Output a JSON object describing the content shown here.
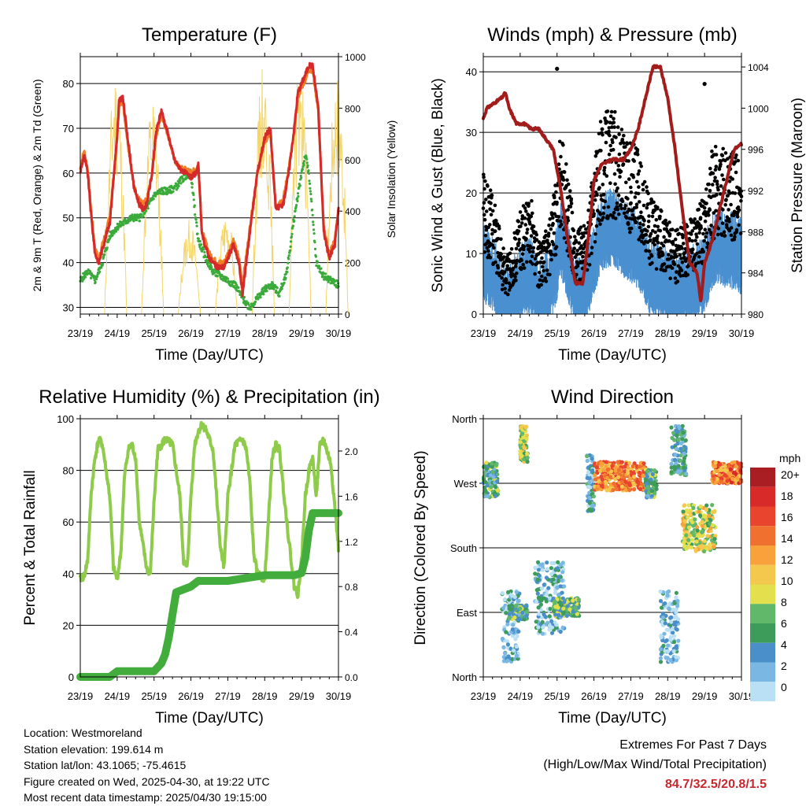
{
  "colors": {
    "temp_2m": "#d42a2a",
    "temp_9m": "#f07c28",
    "dewpoint": "#3aaa3a",
    "solar": "#f4d56a",
    "sonic_wind": "#4a90d0",
    "gust": "#000000",
    "pressure": "#a31c1c",
    "rh": "#8fcb4b",
    "precip": "#42ad3c",
    "extremes": "#c8282d"
  },
  "x_tick_labels": [
    "23/19",
    "24/19",
    "25/19",
    "26/19",
    "27/19",
    "28/19",
    "29/19",
    "30/19"
  ],
  "chart_data": [
    {
      "type": "line",
      "title": "Temperature (F)",
      "xlabel": "Time (Day/UTC)",
      "ylabel": "2m & 9m T (Red, Orange) & 2m Td (Green)",
      "y2label": "Solar Insolation (Yellow)",
      "x_unit": "days since 23/19",
      "xlim": [
        0,
        7
      ],
      "ylim": [
        28.5,
        86
      ],
      "y2lim": [
        0,
        1000
      ],
      "yticks": [
        30,
        40,
        50,
        60,
        70,
        80
      ],
      "y2ticks": [
        0,
        200,
        400,
        600,
        800,
        1000
      ],
      "grid": true,
      "series": [
        {
          "axis": "left",
          "x": [
            0,
            0.1,
            0.2,
            0.3,
            0.4,
            0.5,
            0.6,
            0.8,
            1.0,
            1.05,
            1.15,
            1.3,
            1.45,
            1.6,
            1.7,
            1.8,
            1.95,
            2.05,
            2.2,
            2.4,
            2.55,
            2.7,
            2.85,
            3.0,
            3.15,
            3.2,
            3.3,
            3.5,
            3.7,
            3.9,
            4.0,
            4.15,
            4.3,
            4.4,
            4.6,
            4.8,
            5.0,
            5.15,
            5.3,
            5.5,
            5.65,
            5.8,
            5.9,
            6.0,
            6.2,
            6.3,
            6.45,
            6.6,
            6.75,
            6.9,
            7.0
          ],
          "values": [
            60,
            64,
            60,
            50,
            42,
            40,
            43,
            49,
            68,
            76,
            77,
            67,
            57,
            53,
            52,
            53,
            60,
            69,
            74,
            68,
            63,
            61,
            60,
            59,
            60,
            62,
            46,
            41,
            39,
            39,
            41,
            44,
            40,
            33,
            47,
            60,
            68,
            70,
            52,
            53,
            60,
            70,
            78,
            80,
            84,
            84,
            75,
            47,
            41,
            44,
            52
          ]
        },
        {
          "axis": "left",
          "x": [
            0,
            0.1,
            0.2,
            0.3,
            0.4,
            0.5,
            0.6,
            0.8,
            1.0,
            1.05,
            1.15,
            1.3,
            1.45,
            1.6,
            1.7,
            1.8,
            1.95,
            2.05,
            2.2,
            2.4,
            2.55,
            2.7,
            2.85,
            3.0,
            3.15,
            3.2,
            3.3,
            3.5,
            3.7,
            3.9,
            4.0,
            4.15,
            4.3,
            4.4,
            4.6,
            4.8,
            5.0,
            5.15,
            5.3,
            5.5,
            5.65,
            5.8,
            5.9,
            6.0,
            6.2,
            6.3,
            6.45,
            6.6,
            6.75,
            6.9,
            7.0
          ],
          "values": [
            61,
            65,
            61,
            51,
            43,
            41,
            44,
            50,
            68,
            75,
            76,
            66,
            57,
            54,
            53,
            54,
            60,
            68,
            73,
            68,
            63,
            61,
            61,
            60,
            61,
            62,
            47,
            42,
            40,
            40,
            42,
            45,
            41,
            35,
            48,
            60,
            67,
            69,
            53,
            54,
            61,
            69,
            77,
            79,
            83,
            83,
            74,
            48,
            42,
            45,
            52
          ]
        },
        {
          "axis": "left",
          "x": [
            0,
            0.2,
            0.4,
            0.6,
            0.8,
            1.0,
            1.2,
            1.4,
            1.6,
            1.8,
            2.0,
            2.2,
            2.4,
            2.6,
            2.8,
            3.0,
            3.1,
            3.2,
            3.4,
            3.6,
            3.8,
            4.0,
            4.2,
            4.4,
            4.6,
            4.8,
            5.0,
            5.2,
            5.4,
            5.6,
            5.8,
            6.0,
            6.1,
            6.2,
            6.4,
            6.6,
            6.8,
            7.0
          ],
          "values": [
            36,
            38,
            36,
            40,
            46,
            48,
            49,
            50,
            50,
            52,
            55,
            56,
            56,
            57,
            59,
            60,
            52,
            45,
            41,
            38,
            37,
            36,
            35,
            32,
            30,
            32,
            34,
            35,
            33,
            38,
            50,
            60,
            64,
            60,
            40,
            37,
            36,
            35
          ]
        },
        {
          "axis": "right",
          "peaks": [
            {
              "x": 0.96,
              "v": 960
            },
            {
              "x": 1.96,
              "v": 820
            },
            {
              "x": 2.96,
              "v": 370
            },
            {
              "x": 3.96,
              "v": 400
            },
            {
              "x": 4.96,
              "v": 980
            },
            {
              "x": 5.96,
              "v": 960
            },
            {
              "x": 6.96,
              "v": 960
            }
          ]
        }
      ]
    },
    {
      "type": "scatter",
      "title": "Winds (mph) & Pressure (mb)",
      "xlabel": "Time (Day/UTC)",
      "ylabel": "Sonic Wind & Gust (Blue, Black)",
      "y2label": "Station Pressure (Maroon)",
      "xlim": [
        0,
        7
      ],
      "ylim": [
        0,
        42.5
      ],
      "y2lim": [
        980,
        1005
      ],
      "yticks": [
        0,
        10,
        20,
        30,
        40
      ],
      "y2ticks": [
        980,
        984,
        988,
        992,
        996,
        1000,
        1004
      ],
      "grid": true,
      "wind_mean_profile": {
        "x": [
          0,
          0.3,
          0.5,
          0.7,
          1.0,
          1.3,
          1.5,
          1.8,
          2.0,
          2.1,
          2.3,
          2.5,
          2.8,
          3.0,
          3.2,
          3.5,
          3.8,
          4.0,
          4.2,
          4.5,
          4.8,
          5.0,
          5.2,
          5.5,
          5.8,
          6.0,
          6.2,
          6.4,
          6.6,
          6.8,
          7.0
        ],
        "values": [
          8,
          6,
          2,
          1,
          5,
          6,
          2,
          4,
          8,
          12,
          8,
          3,
          4,
          9,
          13,
          14,
          12,
          11,
          10,
          6,
          5,
          4,
          3,
          4,
          5,
          6,
          10,
          11,
          10,
          10,
          9
        ]
      },
      "gust_outliers": [
        {
          "x": 2.0,
          "y": 40.5
        },
        {
          "x": 6.0,
          "y": 38
        }
      ],
      "pressure": {
        "x": [
          0,
          0.1,
          0.3,
          0.5,
          0.6,
          0.7,
          0.9,
          1.1,
          1.3,
          1.5,
          1.7,
          1.9,
          2.1,
          2.3,
          2.5,
          2.7,
          2.9,
          3.0,
          3.2,
          3.5,
          3.8,
          4.0,
          4.2,
          4.4,
          4.6,
          4.8,
          5.0,
          5.2,
          5.4,
          5.6,
          5.8,
          5.9,
          6.0,
          6.2,
          6.4,
          6.6,
          6.8,
          7.0
        ],
        "values": [
          999,
          1000,
          1000.5,
          1001,
          1001.5,
          1000,
          998.5,
          998.5,
          998,
          998,
          997,
          996,
          992,
          987,
          983,
          983,
          989,
          993,
          994.5,
          995,
          995,
          996,
          998,
          1001,
          1004,
          1004,
          1001,
          996,
          990,
          985,
          984,
          981,
          985,
          987,
          990,
          993,
          996,
          996.5
        ]
      }
    },
    {
      "type": "line",
      "title": "Relative Humidity (%) & Precipitation (in)",
      "xlabel": "Time (Day/UTC)",
      "ylabel": "Percent & Total Rainfall",
      "xlim": [
        0,
        7
      ],
      "ylim": [
        0,
        100
      ],
      "y2lim": [
        0,
        2.2857
      ],
      "yticks": [
        0,
        20,
        40,
        60,
        80,
        100
      ],
      "y2ticks": [
        "0.0",
        "0.4",
        "0.8",
        "1.2",
        "1.6",
        "2.0"
      ],
      "grid": true,
      "series": [
        {
          "name": "rh",
          "x": [
            0,
            0.1,
            0.2,
            0.3,
            0.4,
            0.5,
            0.6,
            0.8,
            0.9,
            1.0,
            1.1,
            1.2,
            1.3,
            1.4,
            1.5,
            1.6,
            1.8,
            1.9,
            2.0,
            2.1,
            2.3,
            2.5,
            2.7,
            2.8,
            2.9,
            3.0,
            3.1,
            3.2,
            3.3,
            3.4,
            3.5,
            3.6,
            3.8,
            3.9,
            4.0,
            4.2,
            4.4,
            4.5,
            4.6,
            4.7,
            4.8,
            5.0,
            5.1,
            5.2,
            5.3,
            5.4,
            5.6,
            5.8,
            5.9,
            6.0,
            6.1,
            6.2,
            6.3,
            6.4,
            6.5,
            6.6,
            6.8,
            7.0
          ],
          "values": [
            38,
            39,
            45,
            72,
            85,
            92,
            90,
            70,
            42,
            38,
            48,
            78,
            88,
            90,
            85,
            60,
            42,
            40,
            68,
            88,
            92,
            90,
            70,
            45,
            42,
            70,
            90,
            95,
            98,
            96,
            92,
            88,
            50,
            42,
            70,
            90,
            92,
            88,
            75,
            48,
            40,
            38,
            60,
            85,
            90,
            88,
            60,
            35,
            32,
            45,
            70,
            80,
            85,
            70,
            90,
            92,
            82,
            50
          ]
        },
        {
          "name": "precip",
          "axis": "right",
          "x": [
            0,
            0.8,
            1.0,
            2.0,
            2.2,
            2.3,
            2.4,
            2.5,
            2.6,
            3.0,
            3.2,
            4.0,
            5.0,
            5.8,
            6.0,
            6.1,
            6.2,
            6.3,
            6.4,
            7.0
          ],
          "values": [
            0,
            0,
            0.05,
            0.05,
            0.12,
            0.2,
            0.35,
            0.55,
            0.75,
            0.8,
            0.85,
            0.85,
            0.9,
            0.9,
            0.92,
            1.05,
            1.3,
            1.45,
            1.45,
            1.45
          ]
        }
      ]
    },
    {
      "type": "scatter",
      "title": "Wind Direction",
      "xlabel": "Time (Day/UTC)",
      "ylabel": "Direction (Colored By Speed)",
      "xlim": [
        0,
        7
      ],
      "ylim": [
        0,
        360
      ],
      "yticks": [
        "North",
        "East",
        "South",
        "West",
        "North"
      ],
      "grid": true,
      "legend_title": "mph",
      "legend_labels": [
        "20+",
        "18",
        "16",
        "14",
        "12",
        "10",
        "8",
        "6",
        "4",
        "2",
        "0"
      ],
      "legend_colors": [
        "#a81e22",
        "#d92a2a",
        "#e8442e",
        "#f07030",
        "#f9a23c",
        "#f3c84c",
        "#e3e04e",
        "#61b76a",
        "#3e9c5a",
        "#4a8fc8",
        "#7ab8e3",
        "#b9e0f5"
      ],
      "clusters": [
        {
          "x0": 0.0,
          "x1": 0.4,
          "dir0": 250,
          "dir1": 300,
          "speed": 6
        },
        {
          "x0": 0.5,
          "x1": 1.0,
          "dir0": 20,
          "dir1": 120,
          "speed": 3
        },
        {
          "x0": 0.7,
          "x1": 1.2,
          "dir0": 80,
          "dir1": 100,
          "speed": 6
        },
        {
          "x0": 1.0,
          "x1": 1.2,
          "dir0": 300,
          "dir1": 350,
          "speed": 9
        },
        {
          "x0": 1.4,
          "x1": 2.2,
          "dir0": 60,
          "dir1": 160,
          "speed": 3
        },
        {
          "x0": 1.9,
          "x1": 2.6,
          "dir0": 85,
          "dir1": 110,
          "speed": 7
        },
        {
          "x0": 2.8,
          "x1": 3.0,
          "dir0": 230,
          "dir1": 310,
          "speed": 4
        },
        {
          "x0": 3.0,
          "x1": 4.4,
          "dir0": 260,
          "dir1": 300,
          "speed": 15
        },
        {
          "x0": 4.4,
          "x1": 4.7,
          "dir0": 250,
          "dir1": 290,
          "speed": 6
        },
        {
          "x0": 4.8,
          "x1": 5.3,
          "dir0": 20,
          "dir1": 120,
          "speed": 2
        },
        {
          "x0": 5.1,
          "x1": 5.5,
          "dir0": 280,
          "dir1": 350,
          "speed": 5
        },
        {
          "x0": 5.4,
          "x1": 6.3,
          "dir0": 175,
          "dir1": 240,
          "speed": 10
        },
        {
          "x0": 6.2,
          "x1": 7.0,
          "dir0": 270,
          "dir1": 300,
          "speed": 16
        }
      ]
    }
  ],
  "info": {
    "location": "Location: Westmoreland",
    "elevation": "Station elevation: 199.614 m",
    "latlon": "Station lat/lon: 43.1065; -75.4615",
    "created": "Figure created on Wed, 2025-04-30, at 19:22 UTC",
    "recent": "Most recent data timestamp: 2025/04/30 19:15:00"
  },
  "extremes": {
    "title": "Extremes For Past 7 Days",
    "subtitle": "(High/Low/Max Wind/Total Precipitation)",
    "values": "84.7/32.5/20.8/1.5"
  }
}
